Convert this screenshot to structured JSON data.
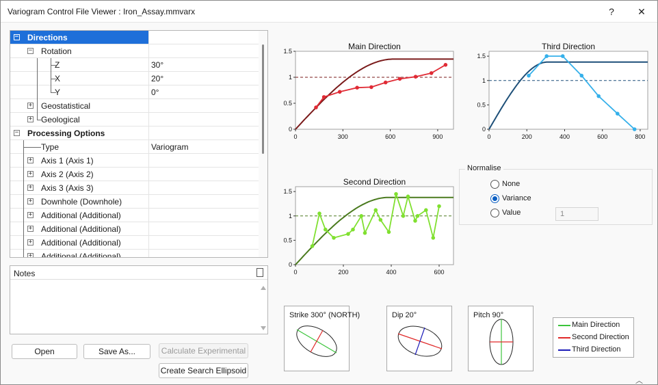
{
  "window": {
    "title": "Variogram Control File Viewer : Iron_Assay.mmvarx",
    "help_label": "?",
    "close_label": "✕"
  },
  "tree": {
    "rows": [
      {
        "label": "Directions",
        "value": "",
        "expander": "−"
      },
      {
        "label": "Rotation",
        "value": "",
        "expander": "−"
      },
      {
        "label": "Z",
        "value": "30°",
        "expander": ""
      },
      {
        "label": "X",
        "value": "20°",
        "expander": ""
      },
      {
        "label": "Y",
        "value": "0°",
        "expander": ""
      },
      {
        "label": "Geostatistical",
        "value": "",
        "expander": "+"
      },
      {
        "label": "Geological",
        "value": "",
        "expander": "+"
      },
      {
        "label": "Processing Options",
        "value": "",
        "expander": "−"
      },
      {
        "label": "Type",
        "value": "Variogram",
        "expander": ""
      },
      {
        "label": "Axis 1 (Axis 1)",
        "value": "",
        "expander": "+"
      },
      {
        "label": "Axis 2 (Axis 2)",
        "value": "",
        "expander": "+"
      },
      {
        "label": "Axis 3 (Axis 3)",
        "value": "",
        "expander": "+"
      },
      {
        "label": "Downhole (Downhole)",
        "value": "",
        "expander": "+"
      },
      {
        "label": "Additional (Additional)",
        "value": "",
        "expander": "+"
      },
      {
        "label": "Additional (Additional)",
        "value": "",
        "expander": "+"
      },
      {
        "label": "Additional (Additional)",
        "value": "",
        "expander": "+"
      },
      {
        "label": "Additional (Additional)",
        "value": "",
        "expander": "+"
      }
    ]
  },
  "notes": {
    "title": "Notes",
    "value": ""
  },
  "buttons": {
    "open": "Open",
    "save_as": "Save As...",
    "calculate": "Calculate Experimental",
    "create_ellipsoid": "Create Search Ellipsoid"
  },
  "normalise": {
    "title": "Normalise",
    "options": [
      "None",
      "Variance",
      "Value"
    ],
    "selected": "Variance",
    "value": "1"
  },
  "ellipses": {
    "strike": "Strike 300° (NORTH)",
    "dip": "Dip 20°",
    "pitch": "Pitch 90°"
  },
  "legend": [
    {
      "label": "Main Direction",
      "color": "#3bc43b"
    },
    {
      "label": "Second Direction",
      "color": "#e02828"
    },
    {
      "label": "Third Direction",
      "color": "#1a1ab8"
    }
  ],
  "chart_data": [
    {
      "type": "line",
      "title": "Main Direction",
      "xlim": [
        0,
        1000
      ],
      "ylim": [
        0,
        1.5
      ],
      "xticks": [
        0,
        300,
        600,
        900
      ],
      "yticks": [
        0,
        0.5,
        1,
        1.5
      ],
      "sill": 1,
      "model": {
        "range": 620,
        "sill": 1.35,
        "color": "#7a1a1a"
      },
      "experimental": {
        "color": "#e02b35",
        "x": [
          130,
          180,
          280,
          390,
          480,
          570,
          660,
          760,
          860,
          950
        ],
        "y": [
          0.42,
          0.62,
          0.72,
          0.8,
          0.81,
          0.9,
          0.97,
          1.01,
          1.08,
          1.24
        ]
      }
    },
    {
      "type": "line",
      "title": "Third Direction",
      "xlim": [
        0,
        840
      ],
      "ylim": [
        0,
        1.6
      ],
      "xticks": [
        0,
        200,
        400,
        600,
        800
      ],
      "yticks": [
        0,
        0.5,
        1,
        1.5
      ],
      "sill": 1,
      "model": {
        "range": 310,
        "sill": 1.38,
        "color": "#1d4f78"
      },
      "experimental": {
        "color": "#35b0ea",
        "x": [
          210,
          305,
          390,
          490,
          580,
          680,
          770
        ],
        "y": [
          1.1,
          1.5,
          1.5,
          1.1,
          0.68,
          0.32,
          0.0
        ]
      }
    },
    {
      "type": "line",
      "title": "Second Direction",
      "xlim": [
        0,
        660
      ],
      "ylim": [
        0,
        1.6
      ],
      "xticks": [
        0,
        200,
        400,
        600
      ],
      "yticks": [
        0,
        0.5,
        1,
        1.5
      ],
      "sill": 1,
      "model": {
        "range": 390,
        "sill": 1.38,
        "color": "#4a7a1e"
      },
      "experimental": {
        "color": "#80e030",
        "x": [
          70,
          100,
          125,
          160,
          220,
          240,
          275,
          290,
          335,
          355,
          390,
          420,
          450,
          470,
          500,
          510,
          545,
          575,
          600
        ],
        "y": [
          0.38,
          1.05,
          0.72,
          0.55,
          0.63,
          0.72,
          1.0,
          0.65,
          1.12,
          0.92,
          0.67,
          1.45,
          1.0,
          1.4,
          0.9,
          1.0,
          1.12,
          0.55,
          1.2
        ]
      }
    }
  ]
}
